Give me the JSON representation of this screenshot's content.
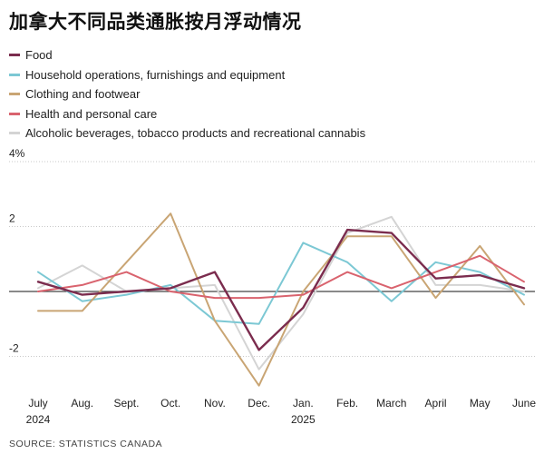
{
  "colors": {
    "food": "#7b2c4e",
    "household": "#7cc8d4",
    "clothing": "#c9a574",
    "health": "#d9636e",
    "alcohol": "#d4d4d4"
  },
  "chart_data": {
    "type": "line",
    "title": "加拿大不同品类通胀按月浮动情况",
    "source": "SOURCE: STATISTICS CANADA",
    "ylim": [
      -3,
      4
    ],
    "y_ticks": [
      {
        "value": 4,
        "label": "4%"
      },
      {
        "value": 2,
        "label": "2"
      },
      {
        "value": 0,
        "label": ""
      },
      {
        "value": -2,
        "label": "-2"
      }
    ],
    "x_labels": [
      {
        "line1": "July",
        "line2": "2024"
      },
      {
        "line1": "Aug.",
        "line2": ""
      },
      {
        "line1": "Sept.",
        "line2": ""
      },
      {
        "line1": "Oct.",
        "line2": ""
      },
      {
        "line1": "Nov.",
        "line2": ""
      },
      {
        "line1": "Dec.",
        "line2": ""
      },
      {
        "line1": "Jan.",
        "line2": "2025"
      },
      {
        "line1": "Feb.",
        "line2": ""
      },
      {
        "line1": "March",
        "line2": ""
      },
      {
        "line1": "April",
        "line2": ""
      },
      {
        "line1": "May",
        "line2": ""
      },
      {
        "line1": "June",
        "line2": ""
      }
    ],
    "series": [
      {
        "name": "Alcoholic beverages, tobacco products and recreational cannabis",
        "key": "alcohol",
        "values": [
          0.1,
          0.8,
          0.0,
          0.1,
          0.2,
          -2.4,
          -0.7,
          1.8,
          2.3,
          0.2,
          0.2,
          0.0
        ]
      },
      {
        "name": "Household operations, furnishings and equipment",
        "key": "household",
        "values": [
          0.6,
          -0.3,
          -0.1,
          0.2,
          -0.9,
          -1.0,
          1.5,
          0.9,
          -0.3,
          0.9,
          0.6,
          -0.1
        ]
      },
      {
        "name": "Clothing and footwear",
        "key": "clothing",
        "values": [
          -0.6,
          -0.6,
          0.9,
          2.4,
          -0.9,
          -2.9,
          0.0,
          1.7,
          1.7,
          -0.2,
          1.4,
          -0.4
        ]
      },
      {
        "name": "Health and personal care",
        "key": "health",
        "values": [
          0.0,
          0.2,
          0.6,
          0.0,
          -0.2,
          -0.2,
          -0.1,
          0.6,
          0.1,
          0.6,
          1.1,
          0.3
        ]
      },
      {
        "name": "Food",
        "key": "food",
        "values": [
          0.3,
          -0.1,
          0.0,
          0.1,
          0.6,
          -1.8,
          -0.5,
          1.9,
          1.8,
          0.4,
          0.5,
          0.1
        ]
      }
    ],
    "legend_order": [
      "food",
      "household",
      "clothing",
      "health",
      "alcohol"
    ],
    "legend_placement": "top-left",
    "grid": true
  }
}
